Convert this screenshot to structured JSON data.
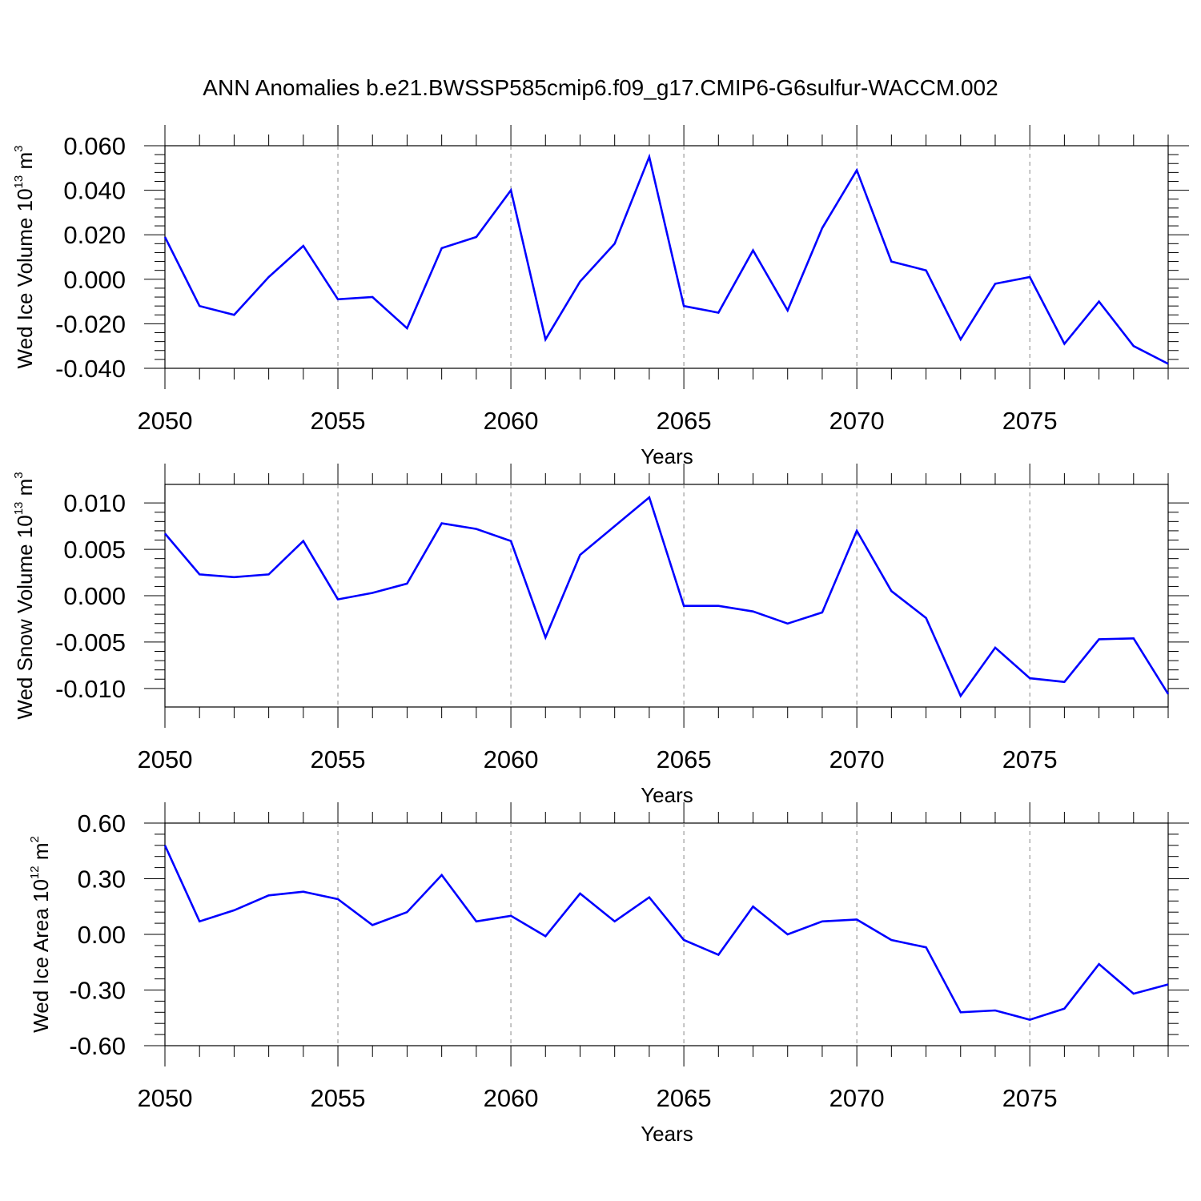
{
  "title": "ANN Anomalies b.e21.BWSSP585cmip6.f09_g17.CMIP6-G6sulfur-WACCM.002",
  "chart_data": [
    {
      "type": "line",
      "title": "ANN Anomalies b.e21.BWSSP585cmip6.f09_g17.CMIP6-G6sulfur-WACCM.002",
      "ylabel": {
        "text": "Wed Ice Volume 10",
        "exp1": "13",
        "unit": " m",
        "exp2": "3"
      },
      "xlabel": "Years",
      "xlim": [
        2050,
        2079
      ],
      "ylim": [
        -0.04,
        0.06
      ],
      "yticks": [
        -0.04,
        -0.02,
        0.0,
        0.02,
        0.04,
        0.06
      ],
      "ytick_labels": [
        "-0.040",
        "-0.020",
        "0.000",
        "0.020",
        "0.040",
        "0.060"
      ],
      "xticks": [
        2050,
        2055,
        2060,
        2065,
        2070,
        2075
      ],
      "xtick_labels": [
        "2050",
        "2055",
        "2060",
        "2065",
        "2070",
        "2075"
      ],
      "grid": "vertical dashed at major x ticks",
      "color": "#0000ff",
      "x": [
        2050,
        2051,
        2052,
        2053,
        2054,
        2055,
        2056,
        2057,
        2058,
        2059,
        2060,
        2061,
        2062,
        2063,
        2064,
        2065,
        2066,
        2067,
        2068,
        2069,
        2070,
        2071,
        2072,
        2073,
        2074,
        2075,
        2076,
        2077,
        2078,
        2079
      ],
      "values": [
        0.019,
        -0.012,
        -0.016,
        0.001,
        0.015,
        -0.009,
        -0.008,
        -0.022,
        0.014,
        0.019,
        0.04,
        -0.027,
        -0.001,
        0.016,
        0.055,
        -0.012,
        -0.015,
        0.013,
        -0.014,
        0.023,
        0.049,
        0.008,
        0.004,
        -0.027,
        -0.002,
        0.001,
        -0.029,
        -0.01,
        -0.03,
        -0.038
      ]
    },
    {
      "type": "line",
      "ylabel": {
        "text": "Wed Snow Volume 10",
        "exp1": "13",
        "unit": " m",
        "exp2": "3"
      },
      "xlabel": "Years",
      "xlim": [
        2050,
        2079
      ],
      "ylim": [
        -0.012,
        0.012
      ],
      "yticks": [
        -0.01,
        -0.005,
        0.0,
        0.005,
        0.01
      ],
      "ytick_labels": [
        "-0.010",
        "-0.005",
        "0.000",
        "0.005",
        "0.010"
      ],
      "xticks": [
        2050,
        2055,
        2060,
        2065,
        2070,
        2075
      ],
      "xtick_labels": [
        "2050",
        "2055",
        "2060",
        "2065",
        "2070",
        "2075"
      ],
      "grid": "vertical dashed at major x ticks",
      "color": "#0000ff",
      "x": [
        2050,
        2051,
        2052,
        2053,
        2054,
        2055,
        2056,
        2057,
        2058,
        2059,
        2060,
        2061,
        2062,
        2063,
        2064,
        2065,
        2066,
        2067,
        2068,
        2069,
        2070,
        2071,
        2072,
        2073,
        2074,
        2075,
        2076,
        2077,
        2078,
        2079
      ],
      "values": [
        0.0067,
        0.0023,
        0.002,
        0.0023,
        0.0059,
        -0.0004,
        0.0003,
        0.0013,
        0.0078,
        0.0072,
        0.0059,
        -0.0045,
        0.0044,
        0.0075,
        0.0106,
        -0.0011,
        -0.0011,
        -0.0017,
        -0.003,
        -0.0018,
        0.007,
        0.0005,
        -0.0024,
        -0.0108,
        -0.0056,
        -0.0089,
        -0.0093,
        -0.0047,
        -0.0046,
        -0.0106
      ]
    },
    {
      "type": "line",
      "ylabel": {
        "text": "Wed Ice Area 10",
        "exp1": "12",
        "unit": " m",
        "exp2": "2"
      },
      "xlabel": "Years",
      "xlim": [
        2050,
        2079
      ],
      "ylim": [
        -0.6,
        0.6
      ],
      "yticks": [
        -0.6,
        -0.3,
        0.0,
        0.3,
        0.6
      ],
      "ytick_labels": [
        "-0.60",
        "-0.30",
        "0.00",
        "0.30",
        "0.60"
      ],
      "xticks": [
        2050,
        2055,
        2060,
        2065,
        2070,
        2075
      ],
      "xtick_labels": [
        "2050",
        "2055",
        "2060",
        "2065",
        "2070",
        "2075"
      ],
      "grid": "vertical dashed at major x ticks",
      "color": "#0000ff",
      "x": [
        2050,
        2051,
        2052,
        2053,
        2054,
        2055,
        2056,
        2057,
        2058,
        2059,
        2060,
        2061,
        2062,
        2063,
        2064,
        2065,
        2066,
        2067,
        2068,
        2069,
        2070,
        2071,
        2072,
        2073,
        2074,
        2075,
        2076,
        2077,
        2078,
        2079
      ],
      "values": [
        0.48,
        0.07,
        0.13,
        0.21,
        0.23,
        0.19,
        0.05,
        0.12,
        0.32,
        0.07,
        0.1,
        -0.01,
        0.22,
        0.07,
        0.2,
        -0.03,
        -0.11,
        0.15,
        0.0,
        0.07,
        0.08,
        -0.03,
        -0.07,
        -0.42,
        -0.41,
        -0.46,
        -0.4,
        -0.16,
        -0.32,
        -0.27
      ]
    }
  ]
}
